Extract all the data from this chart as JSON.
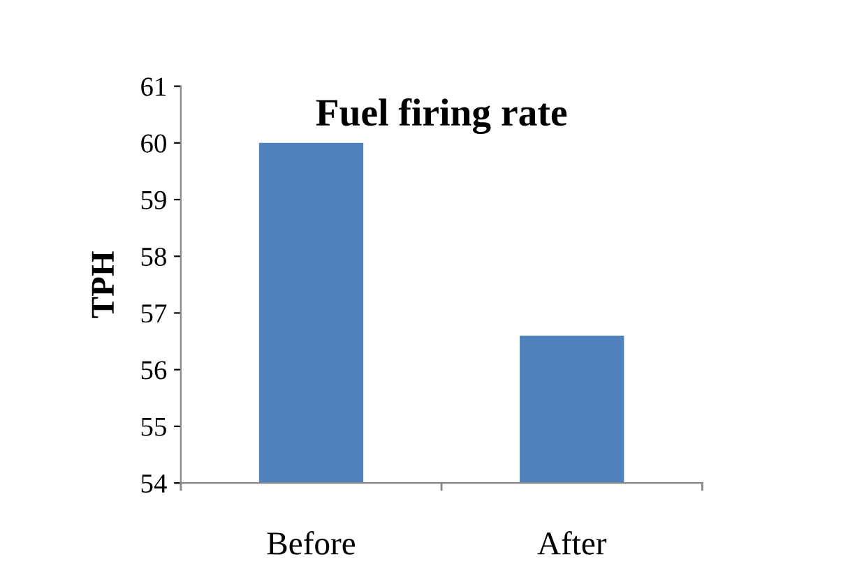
{
  "chart_data": {
    "type": "bar",
    "title": "Fuel firing rate",
    "ylabel": "TPH",
    "categories": [
      "Before",
      "After"
    ],
    "values": [
      60,
      56.6
    ],
    "color": "#4f81bd",
    "ylim": [
      54,
      61
    ],
    "yticks": [
      54,
      55,
      56,
      57,
      58,
      59,
      60,
      61
    ],
    "grid": false,
    "legend": false
  }
}
